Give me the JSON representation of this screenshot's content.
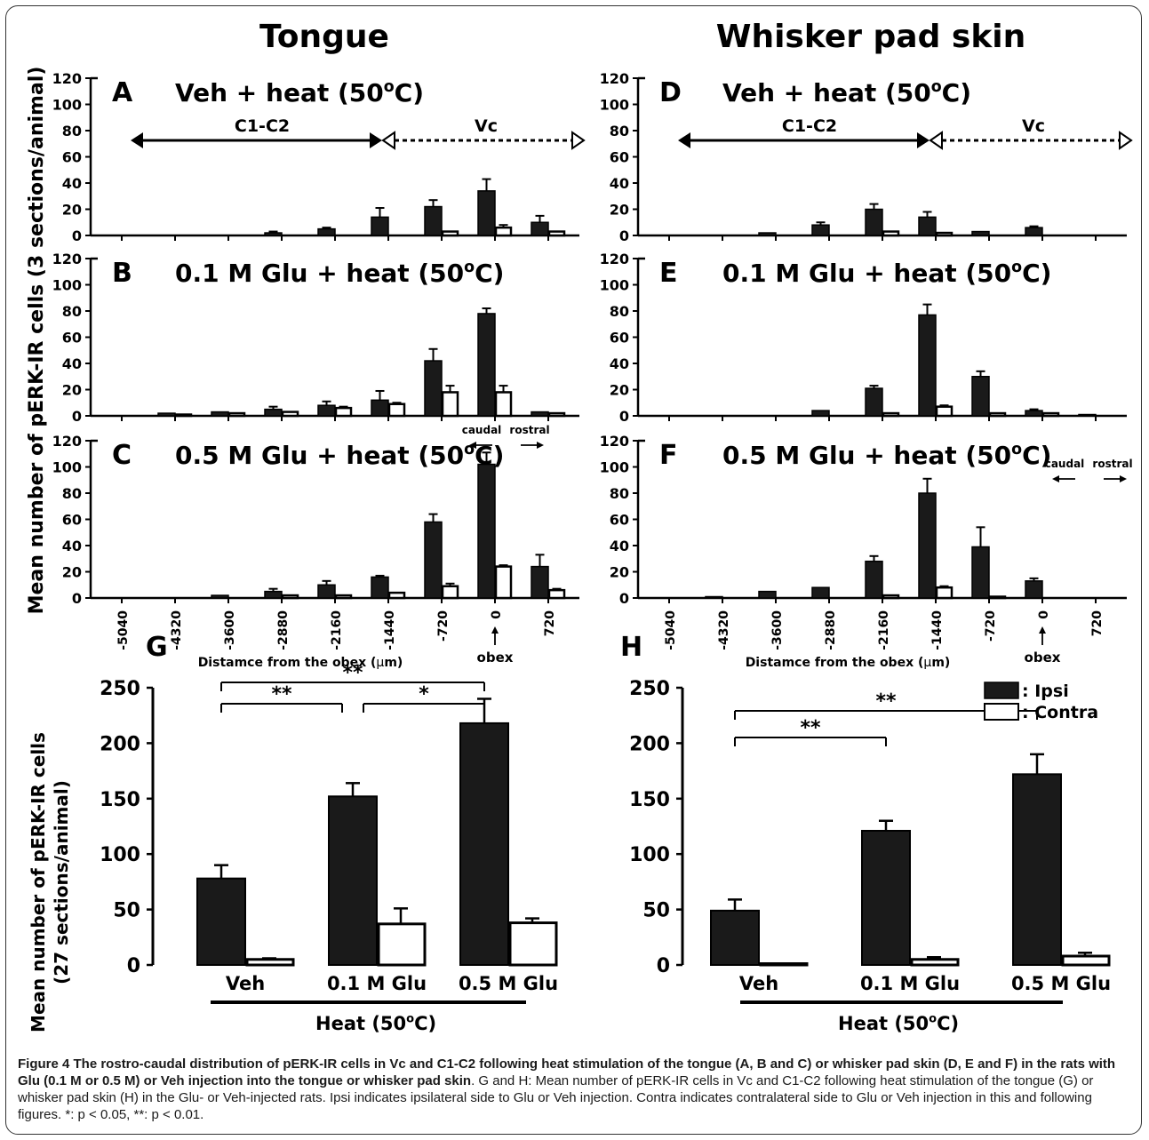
{
  "columns": [
    "Tongue",
    "Whisker pad skin"
  ],
  "top_ylabel": "Mean number of pERK-IR cells (3 sections/animal)",
  "bottom_ylabel": [
    "Mean number of pERK-IR cells",
    "(27 sections/animal)"
  ],
  "x_tick_labels": [
    "-5040",
    "-4320",
    "-3600",
    "-2880",
    "-2160",
    "-1440",
    "-720",
    "0",
    "720"
  ],
  "y_ticks_top": [
    "0",
    "20",
    "40",
    "60",
    "80",
    "100",
    "120"
  ],
  "y_ticks_bottom": [
    "0",
    "50",
    "100",
    "150",
    "200",
    "250"
  ],
  "region_labels": {
    "c1c2": "C1-C2",
    "vc": "Vc"
  },
  "direction": {
    "caudal": "caudal",
    "rostral": "rostral"
  },
  "obex_label": "obex",
  "distance_label_prefix": "Distamce from the obex (",
  "distance_label_unit": "μ",
  "distance_label_suffix": "m)",
  "bar_groups": [
    "Veh",
    "0.1 M Glu",
    "0.5 M Glu"
  ],
  "heat_label": "Heat (50",
  "heat_sup": "o",
  "heat_suffix": "C)",
  "legend": {
    "ipsi": ": Ipsi",
    "contra": ": Contra"
  },
  "sig": {
    "single": "*",
    "double": "**"
  },
  "colors": {
    "ipsi": "#1a1a1a",
    "contra": "#ffffff",
    "stroke": "#000000"
  },
  "chart_data": [
    {
      "panel": "A",
      "type": "bar",
      "column": "Tongue",
      "title_main": "Veh + heat (50",
      "title_sup": "o",
      "title_end": "C)",
      "x": [
        -5040,
        -4320,
        -3600,
        -2880,
        -2160,
        -1440,
        -720,
        0,
        720
      ],
      "ylim": [
        0,
        120
      ],
      "show_regions": true,
      "ipsi": [
        0,
        0,
        0,
        2,
        5,
        14,
        22,
        34,
        10
      ],
      "ipsi_err": [
        0,
        0,
        0,
        1,
        1,
        7,
        5,
        9,
        5
      ],
      "contra": [
        0,
        0,
        0,
        0,
        0,
        0,
        3,
        6,
        3
      ],
      "contra_err": [
        0,
        0,
        0,
        0,
        0,
        0,
        0,
        2,
        0
      ]
    },
    {
      "panel": "B",
      "type": "bar",
      "column": "Tongue",
      "title_main": "0.1 M Glu + heat (50",
      "title_sup": "o",
      "title_end": "C)",
      "x": [
        -5040,
        -4320,
        -3600,
        -2880,
        -2160,
        -1440,
        -720,
        0,
        720
      ],
      "ylim": [
        0,
        120
      ],
      "ipsi": [
        0,
        2,
        3,
        5,
        8,
        12,
        42,
        78,
        3
      ],
      "ipsi_err": [
        0,
        0,
        0,
        2,
        3,
        7,
        9,
        4,
        0
      ],
      "contra": [
        0,
        1,
        2,
        3,
        6,
        9,
        18,
        18,
        2
      ],
      "contra_err": [
        0,
        0,
        0,
        0,
        1,
        1,
        5,
        5,
        0
      ]
    },
    {
      "panel": "C",
      "type": "bar",
      "column": "Tongue",
      "title_main": "0.5 M Glu + heat (50",
      "title_sup": "o",
      "title_end": "C)",
      "x": [
        -5040,
        -4320,
        -3600,
        -2880,
        -2160,
        -1440,
        -720,
        0,
        720
      ],
      "ylim": [
        0,
        120
      ],
      "show_direction": true,
      "ipsi": [
        0,
        0,
        2,
        5,
        10,
        16,
        58,
        102,
        24
      ],
      "ipsi_err": [
        0,
        0,
        0,
        2,
        3,
        1,
        6,
        9,
        9
      ],
      "contra": [
        0,
        0,
        0,
        2,
        2,
        4,
        9,
        24,
        6
      ],
      "contra_err": [
        0,
        0,
        0,
        0,
        0,
        0,
        2,
        1,
        1
      ]
    },
    {
      "panel": "D",
      "type": "bar",
      "column": "Whisker pad skin",
      "title_main": "Veh + heat (50",
      "title_sup": "o",
      "title_end": "C)",
      "x": [
        -5040,
        -4320,
        -3600,
        -2880,
        -2160,
        -1440,
        -720,
        0,
        720
      ],
      "ylim": [
        0,
        120
      ],
      "show_regions": true,
      "ipsi": [
        0,
        0,
        2,
        8,
        20,
        14,
        3,
        6,
        0
      ],
      "ipsi_err": [
        0,
        0,
        0,
        2,
        4,
        4,
        0,
        1,
        0
      ],
      "contra": [
        0,
        0,
        0,
        0,
        3,
        2,
        0,
        0,
        0
      ],
      "contra_err": [
        0,
        0,
        0,
        0,
        0,
        0,
        0,
        0,
        0
      ]
    },
    {
      "panel": "E",
      "type": "bar",
      "column": "Whisker pad skin",
      "title_main": "0.1 M Glu + heat (50",
      "title_sup": "o",
      "title_end": "C)",
      "x": [
        -5040,
        -4320,
        -3600,
        -2880,
        -2160,
        -1440,
        -720,
        0,
        720
      ],
      "ylim": [
        0,
        120
      ],
      "ipsi": [
        0,
        0,
        0,
        4,
        21,
        77,
        30,
        4,
        1
      ],
      "ipsi_err": [
        0,
        0,
        0,
        0,
        2,
        8,
        4,
        1,
        0
      ],
      "contra": [
        0,
        0,
        0,
        0,
        2,
        7,
        2,
        2,
        0
      ],
      "contra_err": [
        0,
        0,
        0,
        0,
        0,
        1,
        0,
        0,
        0
      ]
    },
    {
      "panel": "F",
      "type": "bar",
      "column": "Whisker pad skin",
      "title_main": "0.5 M Glu + heat (50",
      "title_sup": "o",
      "title_end": "C)",
      "x": [
        -5040,
        -4320,
        -3600,
        -2880,
        -2160,
        -1440,
        -720,
        0,
        720
      ],
      "ylim": [
        0,
        120
      ],
      "show_direction": true,
      "ipsi": [
        0,
        1,
        5,
        8,
        28,
        80,
        39,
        13,
        0
      ],
      "ipsi_err": [
        0,
        0,
        0,
        0,
        4,
        11,
        15,
        2,
        0
      ],
      "contra": [
        0,
        0,
        0,
        0,
        2,
        8,
        1,
        0,
        0
      ],
      "contra_err": [
        0,
        0,
        0,
        0,
        0,
        1,
        0,
        0,
        0
      ]
    },
    {
      "panel": "G",
      "type": "bar",
      "column": "Tongue",
      "ylim": [
        0,
        250
      ],
      "categories": [
        "Veh",
        "0.1 M Glu",
        "0.5 M Glu"
      ],
      "series": [
        {
          "name": ": Ipsi",
          "values": [
            78,
            152,
            218
          ],
          "errors": [
            12,
            12,
            22
          ]
        },
        {
          "name": ": Contra",
          "values": [
            5,
            37,
            38
          ],
          "errors": [
            1,
            14,
            4
          ]
        }
      ],
      "significance": [
        {
          "from": 0,
          "to": 1,
          "label": "**"
        },
        {
          "from": 1,
          "to": 2,
          "label": "*"
        },
        {
          "from": 0,
          "to": 2,
          "label": "**"
        }
      ]
    },
    {
      "panel": "H",
      "type": "bar",
      "column": "Whisker pad skin",
      "ylim": [
        0,
        250
      ],
      "categories": [
        "Veh",
        "0.1 M Glu",
        "0.5 M Glu"
      ],
      "series": [
        {
          "name": ": Ipsi",
          "values": [
            49,
            121,
            172
          ],
          "errors": [
            10,
            9,
            18
          ]
        },
        {
          "name": ": Contra",
          "values": [
            1,
            5,
            8
          ],
          "errors": [
            0,
            2,
            3
          ]
        }
      ],
      "significance": [
        {
          "from": 0,
          "to": 1,
          "label": "**"
        },
        {
          "from": 0,
          "to": 2,
          "label": "**"
        }
      ]
    }
  ],
  "caption": {
    "bold": "Figure 4 The rostro-caudal distribution of pERK-IR cells in Vc and C1-C2 following heat stimulation of the tongue (A, B and C) or whisker pad skin (D, E and F) in the rats with Glu (0.1 M or 0.5 M) or Veh injection into the tongue or whisker pad skin",
    "rest": ". G and H: Mean number of pERK-IR cells in Vc and C1-C2 following heat stimulation of the tongue (G) or whisker pad skin (H) in the Glu- or Veh-injected rats. Ipsi indicates ipsilateral side to Glu or Veh injection. Contra indicates contralateral side to Glu or Veh injection in this and following figures. *: p < 0.05, **: p < 0.01."
  }
}
